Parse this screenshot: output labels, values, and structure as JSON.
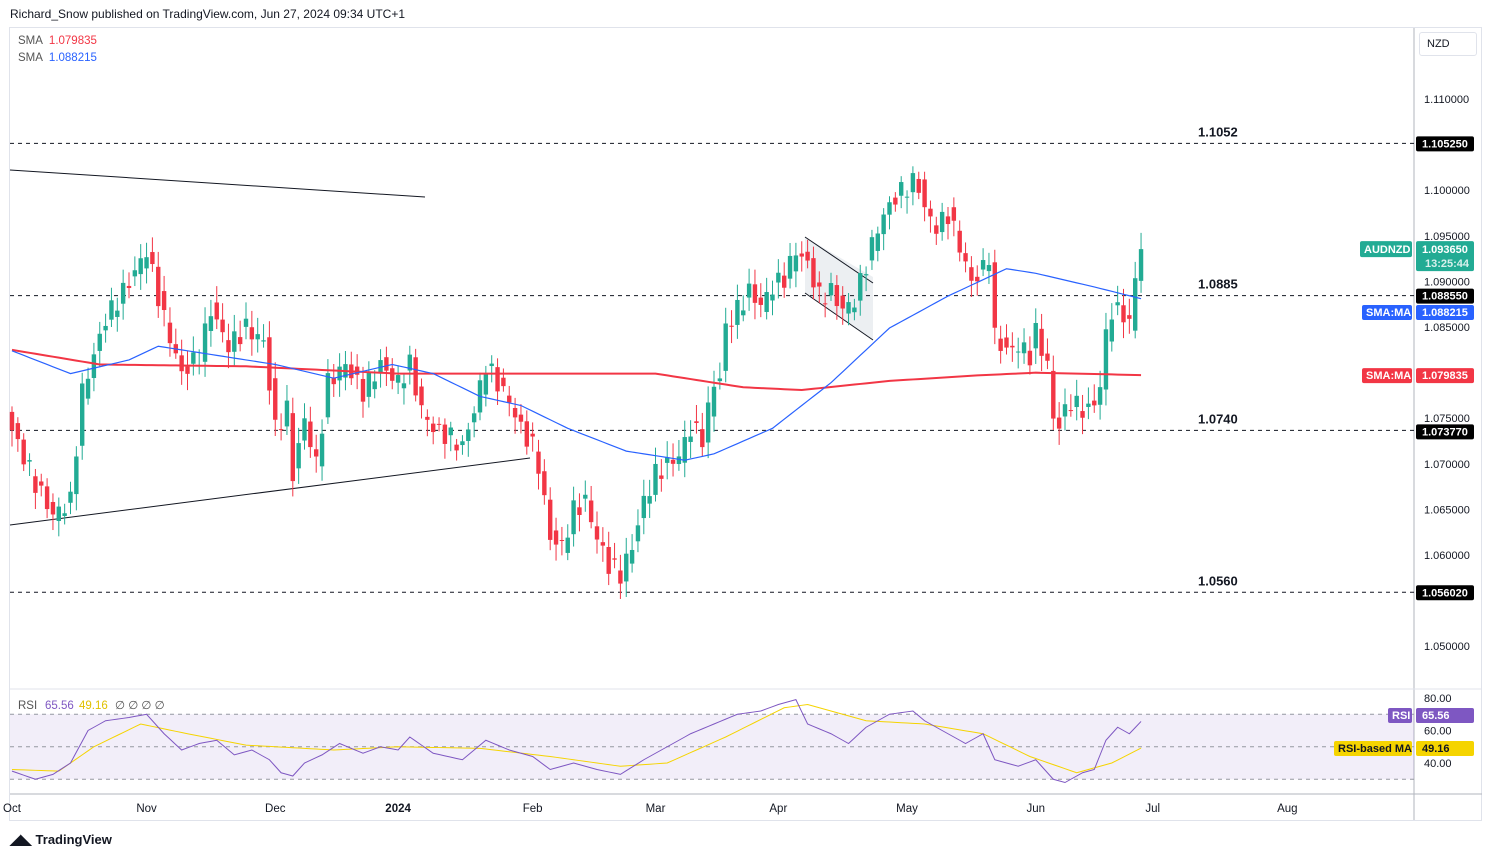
{
  "header": {
    "published": "Richard_Snow published on TradingView.com, Jun 27, 2024 09:34 UTC+1"
  },
  "legend": [
    {
      "label": "SMA",
      "value": "1.079835",
      "color": "#f23645"
    },
    {
      "label": "SMA",
      "value": "1.088215",
      "color": "#2962ff"
    }
  ],
  "currency_button": "NZD",
  "footer": {
    "brand": "TradingView"
  },
  "colors": {
    "up": "#22ab94",
    "down": "#f23645",
    "sma50": "#2962ff",
    "sma200": "#f23645",
    "rsi": "#7e57c2",
    "rsi_ma": "#f5d400"
  },
  "chart_data": {
    "type": "candlestick",
    "symbol": "AUDNZD",
    "price_axis": {
      "ticks": [
        "1.110000",
        "1.100000",
        "1.095000",
        "1.090000",
        "1.085000",
        "1.075000",
        "1.070000",
        "1.065000",
        "1.060000",
        "1.050000"
      ],
      "tick_values": [
        1.11,
        1.1,
        1.095,
        1.09,
        1.085,
        1.075,
        1.07,
        1.065,
        1.06,
        1.05
      ]
    },
    "time_axis": {
      "labels": [
        "Oct",
        "Nov",
        "Dec",
        "2024",
        "Feb",
        "Mar",
        "Apr",
        "May",
        "Jun",
        "Jul",
        "Aug"
      ],
      "label_index": [
        0,
        23,
        45,
        66,
        89,
        110,
        131,
        153,
        175,
        195,
        218
      ]
    },
    "close_path": [
      [
        0,
        1.0738
      ],
      [
        4,
        1.068
      ],
      [
        7,
        1.0645
      ],
      [
        10,
        1.066
      ],
      [
        12,
        1.078
      ],
      [
        16,
        1.086
      ],
      [
        20,
        1.09
      ],
      [
        23,
        1.0935
      ],
      [
        26,
        1.086
      ],
      [
        29,
        1.08
      ],
      [
        32,
        1.082
      ],
      [
        34,
        1.087
      ],
      [
        37,
        1.083
      ],
      [
        40,
        1.085
      ],
      [
        43,
        1.0835
      ],
      [
        45,
        1.074
      ],
      [
        47,
        1.076
      ],
      [
        48,
        1.069
      ],
      [
        50,
        1.075
      ],
      [
        52,
        1.07
      ],
      [
        54,
        1.079
      ],
      [
        57,
        1.081
      ],
      [
        60,
        1.078
      ],
      [
        63,
        1.081
      ],
      [
        66,
        1.079
      ],
      [
        68,
        1.081
      ],
      [
        70,
        1.076
      ],
      [
        72,
        1.074
      ],
      [
        75,
        1.073
      ],
      [
        77,
        1.072
      ],
      [
        79,
        1.076
      ],
      [
        81,
        1.081
      ],
      [
        83,
        1.079
      ],
      [
        85,
        1.077
      ],
      [
        87,
        1.074
      ],
      [
        89,
        1.072
      ],
      [
        90,
        1.07
      ],
      [
        92,
        1.062
      ],
      [
        94,
        1.061
      ],
      [
        96,
        1.065
      ],
      [
        98,
        1.066
      ],
      [
        100,
        1.062
      ],
      [
        102,
        1.059
      ],
      [
        104,
        1.058
      ],
      [
        106,
        1.061
      ],
      [
        108,
        1.066
      ],
      [
        110,
        1.069
      ],
      [
        112,
        1.07
      ],
      [
        114,
        1.071
      ],
      [
        116,
        1.074
      ],
      [
        118,
        1.073
      ],
      [
        120,
        1.079
      ],
      [
        121,
        1.0795
      ],
      [
        122,
        1.085
      ],
      [
        124,
        1.087
      ],
      [
        126,
        1.089
      ],
      [
        128,
        1.0875
      ],
      [
        130,
        1.0895
      ],
      [
        132,
        1.0905
      ],
      [
        134,
        1.0935
      ],
      [
        136,
        1.092
      ],
      [
        138,
        1.0885
      ],
      [
        140,
        1.089
      ],
      [
        142,
        1.087
      ],
      [
        144,
        1.088
      ],
      [
        146,
        1.092
      ],
      [
        148,
        1.096
      ],
      [
        150,
        1.0985
      ],
      [
        152,
        1.1
      ],
      [
        154,
        1.101
      ],
      [
        155,
        1.1005
      ],
      [
        156,
        1.098
      ],
      [
        158,
        1.096
      ],
      [
        160,
        1.0975
      ],
      [
        162,
        1.094
      ],
      [
        164,
        1.09
      ],
      [
        166,
        1.0915
      ],
      [
        167,
        1.093
      ],
      [
        168,
        1.084
      ],
      [
        170,
        1.0825
      ],
      [
        172,
        1.083
      ],
      [
        174,
        1.082
      ],
      [
        175,
        1.0845
      ],
      [
        177,
        1.081
      ],
      [
        178,
        1.075
      ],
      [
        179,
        1.0745
      ],
      [
        181,
        1.077
      ],
      [
        183,
        1.076
      ],
      [
        185,
        1.0765
      ],
      [
        186,
        1.079
      ],
      [
        187,
        1.084
      ],
      [
        188,
        1.087
      ],
      [
        190,
        1.0865
      ],
      [
        191,
        1.0855
      ],
      [
        192,
        1.0905
      ],
      [
        193,
        1.09365
      ]
    ],
    "sma50_path": [
      [
        0,
        1.0825
      ],
      [
        10,
        1.08
      ],
      [
        20,
        1.0815
      ],
      [
        25,
        1.083
      ],
      [
        35,
        1.082
      ],
      [
        45,
        1.081
      ],
      [
        55,
        1.0795
      ],
      [
        65,
        1.081
      ],
      [
        72,
        1.08
      ],
      [
        80,
        1.0775
      ],
      [
        87,
        1.0765
      ],
      [
        95,
        1.074
      ],
      [
        105,
        1.0715
      ],
      [
        115,
        1.0705
      ],
      [
        120,
        1.0712
      ],
      [
        130,
        1.074
      ],
      [
        140,
        1.079
      ],
      [
        150,
        1.085
      ],
      [
        160,
        1.0885
      ],
      [
        170,
        1.0915
      ],
      [
        175,
        1.091
      ],
      [
        185,
        1.0895
      ],
      [
        193,
        1.088215
      ]
    ],
    "sma200_path": [
      [
        0,
        1.0826
      ],
      [
        15,
        1.081
      ],
      [
        40,
        1.0808
      ],
      [
        66,
        1.08
      ],
      [
        110,
        1.08
      ],
      [
        125,
        1.0785
      ],
      [
        135,
        1.0782
      ],
      [
        150,
        1.0792
      ],
      [
        165,
        1.0798
      ],
      [
        175,
        1.0801
      ],
      [
        193,
        1.079835
      ]
    ],
    "levels": [
      {
        "label": "1.1052",
        "axis": "1.105250",
        "value": 1.10525
      },
      {
        "label": "1.0885",
        "axis": "1.088550",
        "value": 1.08855
      },
      {
        "label": "1.0740",
        "axis": "1.073770",
        "value": 1.07377
      },
      {
        "label": "1.0560",
        "axis": "1.056020",
        "value": 1.05602
      }
    ],
    "last": {
      "symbol": "AUDNZD",
      "price": "1.093650",
      "countdown": "13:25:44"
    },
    "sma_tags": [
      {
        "label": "SMA:MA",
        "value": "1.088215"
      },
      {
        "label": "SMA:MA",
        "value": "1.079835"
      }
    ],
    "rsi": {
      "title": "RSI",
      "value": "65.56",
      "ma_value": "49.16",
      "extras": "∅ ∅ ∅ ∅",
      "ma_label": "RSI-based MA",
      "ticks": [
        "80.00",
        "60.00",
        "40.00"
      ],
      "bands": [
        70,
        50,
        30
      ],
      "path": [
        [
          0,
          35
        ],
        [
          4,
          30
        ],
        [
          7,
          33
        ],
        [
          10,
          40
        ],
        [
          13,
          60
        ],
        [
          16,
          66
        ],
        [
          20,
          68
        ],
        [
          23,
          70
        ],
        [
          26,
          58
        ],
        [
          29,
          48
        ],
        [
          32,
          52
        ],
        [
          35,
          54
        ],
        [
          38,
          45
        ],
        [
          41,
          48
        ],
        [
          44,
          42
        ],
        [
          46,
          34
        ],
        [
          48,
          32
        ],
        [
          50,
          40
        ],
        [
          53,
          45
        ],
        [
          56,
          52
        ],
        [
          60,
          46
        ],
        [
          63,
          50
        ],
        [
          66,
          48
        ],
        [
          68,
          56
        ],
        [
          72,
          46
        ],
        [
          77,
          42
        ],
        [
          81,
          54
        ],
        [
          85,
          48
        ],
        [
          89,
          44
        ],
        [
          92,
          36
        ],
        [
          96,
          40
        ],
        [
          100,
          36
        ],
        [
          104,
          33
        ],
        [
          108,
          42
        ],
        [
          112,
          50
        ],
        [
          116,
          58
        ],
        [
          120,
          64
        ],
        [
          124,
          70
        ],
        [
          128,
          72
        ],
        [
          131,
          76
        ],
        [
          134,
          79
        ],
        [
          136,
          64
        ],
        [
          140,
          58
        ],
        [
          143,
          52
        ],
        [
          146,
          62
        ],
        [
          150,
          70
        ],
        [
          154,
          72
        ],
        [
          156,
          66
        ],
        [
          160,
          58
        ],
        [
          163,
          52
        ],
        [
          166,
          58
        ],
        [
          168,
          42
        ],
        [
          172,
          38
        ],
        [
          175,
          42
        ],
        [
          178,
          30
        ],
        [
          180,
          28
        ],
        [
          183,
          34
        ],
        [
          185,
          36
        ],
        [
          187,
          54
        ],
        [
          189,
          62
        ],
        [
          191,
          58
        ],
        [
          193,
          65.56
        ]
      ],
      "ma_path": [
        [
          0,
          36
        ],
        [
          8,
          35
        ],
        [
          14,
          50
        ],
        [
          22,
          64
        ],
        [
          30,
          58
        ],
        [
          40,
          51
        ],
        [
          55,
          48
        ],
        [
          66,
          50
        ],
        [
          80,
          49
        ],
        [
          92,
          44
        ],
        [
          104,
          38
        ],
        [
          112,
          40
        ],
        [
          122,
          56
        ],
        [
          132,
          74
        ],
        [
          136,
          76
        ],
        [
          146,
          66
        ],
        [
          156,
          64
        ],
        [
          166,
          58
        ],
        [
          174,
          44
        ],
        [
          182,
          34
        ],
        [
          188,
          40
        ],
        [
          193,
          49.16
        ]
      ]
    }
  }
}
